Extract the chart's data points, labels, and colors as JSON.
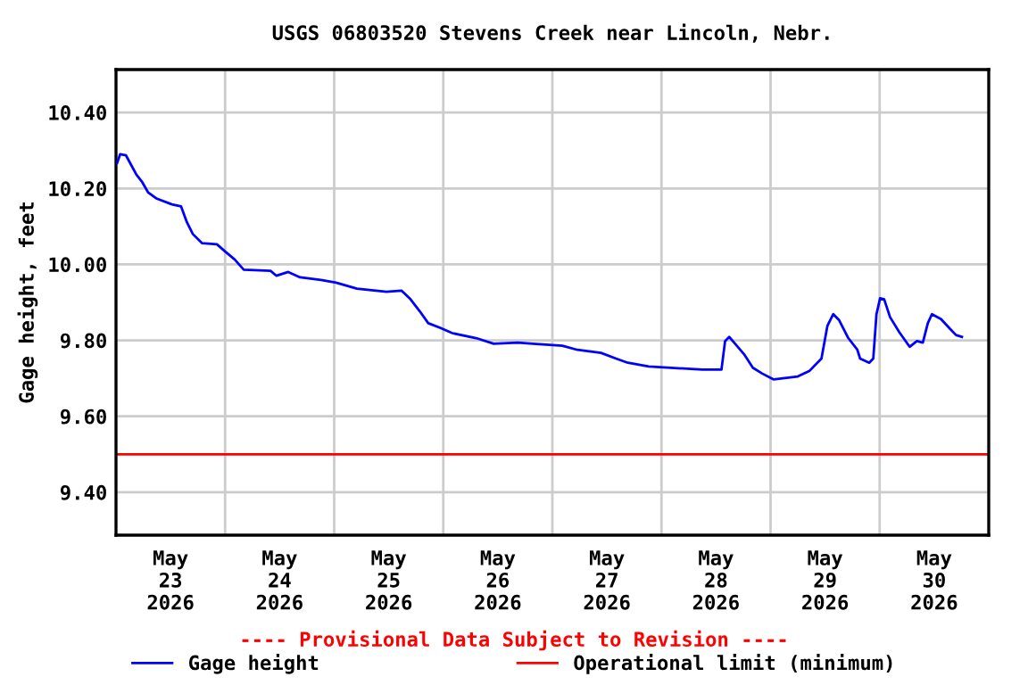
{
  "chart_data": {
    "type": "line",
    "title": "USGS 06803520 Stevens Creek near Lincoln, Nebr.",
    "ylabel": "Gage height, feet",
    "annotations": [
      "---- Provisional Data Subject to Revision ----"
    ],
    "series": [
      {
        "name": "Gage height",
        "color": "#0000ff",
        "x": [
          "2026-05-23T00:15",
          "2026-05-23T00:54",
          "2026-05-23T02:12",
          "2026-05-23T03:06",
          "2026-05-23T04:30",
          "2026-05-23T05:48",
          "2026-05-23T07:06",
          "2026-05-23T09:00",
          "2026-05-23T12:18",
          "2026-05-23T14:18",
          "2026-05-23T15:36",
          "2026-05-23T16:54",
          "2026-05-23T18:54",
          "2026-05-23T22:12",
          "2026-05-24T00:06",
          "2026-05-24T02:06",
          "2026-05-24T04:06",
          "2026-05-24T10:00",
          "2026-05-24T11:18",
          "2026-05-24T13:54",
          "2026-05-24T16:30",
          "2026-05-24T21:06",
          "2026-05-25T00:24",
          "2026-05-25T05:00",
          "2026-05-25T11:30",
          "2026-05-25T14:48",
          "2026-05-25T16:48",
          "2026-05-25T18:48",
          "2026-05-25T20:42",
          "2026-05-25T23:18",
          "2026-05-26T02:00",
          "2026-05-26T07:12",
          "2026-05-26T11:06",
          "2026-05-26T16:24",
          "2026-05-26T19:42",
          "2026-05-27T02:12",
          "2026-05-27T05:30",
          "2026-05-27T10:42",
          "2026-05-27T14:00",
          "2026-05-27T16:36",
          "2026-05-27T21:12",
          "2026-05-28T09:00",
          "2026-05-28T13:12",
          "2026-05-28T14:00",
          "2026-05-28T14:54",
          "2026-05-28T16:12",
          "2026-05-28T18:12",
          "2026-05-28T20:06",
          "2026-05-28T22:06",
          "2026-05-29T00:42",
          "2026-05-29T06:00",
          "2026-05-29T08:36",
          "2026-05-29T11:12",
          "2026-05-29T12:30",
          "2026-05-29T13:48",
          "2026-05-29T15:06",
          "2026-05-29T17:06",
          "2026-05-29T19:06",
          "2026-05-29T19:42",
          "2026-05-29T21:42",
          "2026-05-29T22:36",
          "2026-05-29T23:18",
          "2026-05-30T00:06",
          "2026-05-30T01:00",
          "2026-05-30T02:18",
          "2026-05-30T04:18",
          "2026-05-30T06:36",
          "2026-05-30T08:12",
          "2026-05-30T09:30",
          "2026-05-30T10:36",
          "2026-05-30T11:30",
          "2026-05-30T13:30",
          "2026-05-30T15:30",
          "2026-05-30T16:48",
          "2026-05-30T18:06"
        ],
        "values": [
          10.267,
          10.29,
          10.287,
          10.267,
          10.236,
          10.216,
          10.189,
          10.173,
          10.158,
          10.153,
          10.111,
          10.08,
          10.056,
          10.053,
          10.033,
          10.013,
          9.986,
          9.983,
          9.97,
          9.98,
          9.966,
          9.959,
          9.952,
          9.936,
          9.928,
          9.931,
          9.908,
          9.877,
          9.845,
          9.833,
          9.819,
          9.806,
          9.791,
          9.794,
          9.791,
          9.786,
          9.775,
          9.767,
          9.752,
          9.741,
          9.731,
          9.723,
          9.723,
          9.798,
          9.809,
          9.791,
          9.763,
          9.728,
          9.713,
          9.697,
          9.705,
          9.72,
          9.752,
          9.838,
          9.869,
          9.853,
          9.806,
          9.775,
          9.752,
          9.741,
          9.752,
          9.869,
          9.911,
          9.908,
          9.861,
          9.822,
          9.783,
          9.798,
          9.794,
          9.845,
          9.869,
          9.856,
          9.83,
          9.814,
          9.809
        ]
      }
    ],
    "ref_lines": [
      {
        "axis": "y",
        "value": 9.5,
        "label": "Operational limit (minimum)",
        "color": "#ff0000"
      }
    ],
    "xlim": [
      "2026-05-23T00:00",
      "2026-05-31T00:00"
    ],
    "xticks": [
      {
        "value": "2026-05-23T12:00",
        "label": "May\n23\n2026"
      },
      {
        "value": "2026-05-24T12:00",
        "label": "May\n24\n2026"
      },
      {
        "value": "2026-05-25T12:00",
        "label": "May\n25\n2026"
      },
      {
        "value": "2026-05-26T12:00",
        "label": "May\n26\n2026"
      },
      {
        "value": "2026-05-27T12:00",
        "label": "May\n27\n2026"
      },
      {
        "value": "2026-05-28T12:00",
        "label": "May\n28\n2026"
      },
      {
        "value": "2026-05-29T12:00",
        "label": "May\n29\n2026"
      },
      {
        "value": "2026-05-30T12:00",
        "label": "May\n30\n2026"
      },
      {
        "value": "2026-05-24T00:00",
        "label": null
      },
      {
        "value": "2026-05-25T00:00",
        "label": null
      },
      {
        "value": "2026-05-26T00:00",
        "label": null
      },
      {
        "value": "2026-05-27T00:00",
        "label": null
      },
      {
        "value": "2026-05-28T00:00",
        "label": null
      },
      {
        "value": "2026-05-29T00:00",
        "label": null
      },
      {
        "value": "2026-05-30T00:00",
        "label": null
      }
    ],
    "ylim": [
      9.287,
      10.513
    ],
    "yticks": [
      {
        "value": 9.4,
        "label": "9.40"
      },
      {
        "value": 9.6,
        "label": "9.60"
      },
      {
        "value": 9.8,
        "label": "9.80"
      },
      {
        "value": 10.0,
        "label": "10.00"
      },
      {
        "value": 10.2,
        "label": "10.20"
      },
      {
        "value": 10.4,
        "label": "10.40"
      }
    ],
    "grid": true,
    "legend": "bottom",
    "marker": "none",
    "line_style": "solid"
  }
}
